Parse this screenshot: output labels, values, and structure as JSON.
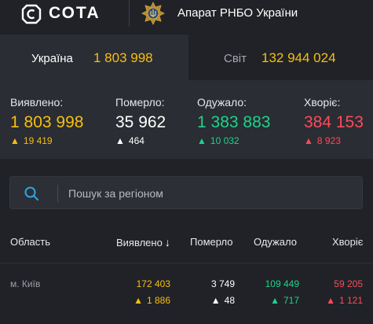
{
  "header": {
    "brand": "СОТА",
    "org_name": "Апарат РНБО України"
  },
  "tabs": [
    {
      "label": "Україна",
      "value": "1 803 998",
      "active": true
    },
    {
      "label": "Світ",
      "value": "132 944 024",
      "active": false
    }
  ],
  "stats": [
    {
      "label": "Виявлено:",
      "value": "1 803 998",
      "delta": "19 419",
      "color": "#f7be13"
    },
    {
      "label": "Померло:",
      "value": "35 962",
      "delta": "464",
      "color": "#ffffff"
    },
    {
      "label": "Одужало:",
      "value": "1 383 883",
      "delta": "10 032",
      "color": "#1fd38a"
    },
    {
      "label": "Хворіє:",
      "value": "384 153",
      "delta": "8 923",
      "color": "#ff4a5b"
    }
  ],
  "search": {
    "placeholder": "Пошук за регіоном",
    "value": ""
  },
  "table": {
    "columns": [
      "Область",
      "Виявлено",
      "Померло",
      "Одужало",
      "Хворіє"
    ],
    "sort_arrow": "↓",
    "rows": [
      {
        "region": "м. Київ",
        "detected": "172 403",
        "detected_delta": "1 886",
        "died": "3 749",
        "died_delta": "48",
        "recovered": "109 449",
        "recovered_delta": "717",
        "sick": "59 205",
        "sick_delta": "1 121"
      }
    ]
  },
  "arrow_glyph": "🡑"
}
